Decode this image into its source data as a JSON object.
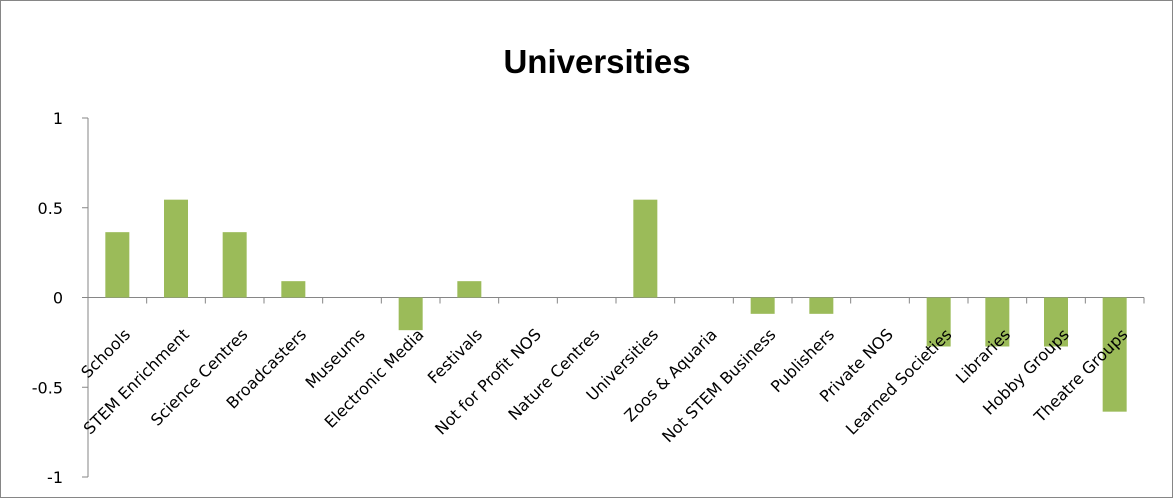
{
  "chart_data": {
    "type": "bar",
    "title": "Universities",
    "xlabel": "",
    "ylabel": "",
    "ylim": [
      -1,
      1
    ],
    "yticks": [
      1,
      0.5,
      0,
      -0.5,
      -1
    ],
    "ytick_labels": [
      "1",
      "0.5",
      "0",
      "-0.5",
      "-1"
    ],
    "grid": false,
    "legend": "none",
    "bar_color": "#9BBB59",
    "categories": [
      "Schools",
      "STEM Enrichment",
      "Science Centres",
      "Broadcasters",
      "Museums",
      "Electronic Media",
      "Festivals",
      "Not for Profit NOS",
      "Nature Centres",
      "Universities",
      "Zoos & Aquaria",
      "Not STEM Business",
      "Publishers",
      "Private NOS",
      "Learned Societies",
      "Libraries",
      "Hobby Groups",
      "Theatre Groups"
    ],
    "values": [
      0.364,
      0.545,
      0.364,
      0.091,
      0,
      -0.182,
      0.091,
      0,
      0,
      0.545,
      0,
      -0.091,
      -0.091,
      0,
      -0.273,
      -0.273,
      -0.273,
      -0.636
    ]
  }
}
